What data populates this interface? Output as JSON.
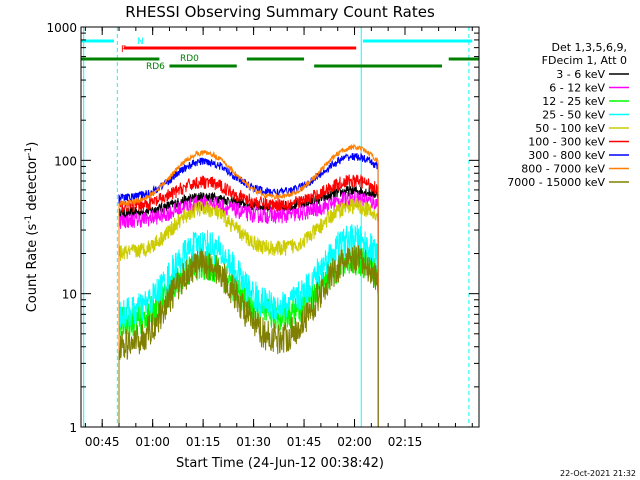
{
  "chart_data": {
    "type": "line",
    "title": "RHESSI Observing Summary Count Rates",
    "xlabel": "Start Time (24-Jun-12 00:38:42)",
    "ylabel_main": "Count Rate (s",
    "ylabel_sup1": "-1",
    "ylabel_mid": " detector",
    "ylabel_sup2": "-1",
    "ylabel_end": ")",
    "yscale": "log",
    "ylim": [
      1,
      1000
    ],
    "xlim_minutes": [
      38.7,
      157
    ],
    "x_ticks": [
      {
        "label": "00:45",
        "t": 45
      },
      {
        "label": "01:00",
        "t": 60
      },
      {
        "label": "01:15",
        "t": 75
      },
      {
        "label": "01:30",
        "t": 90
      },
      {
        "label": "01:45",
        "t": 105
      },
      {
        "label": "02:00",
        "t": 120
      },
      {
        "label": "02:15",
        "t": 135
      }
    ],
    "y_ticks": [
      {
        "label": "1",
        "v": 1
      },
      {
        "label": "10",
        "v": 10
      },
      {
        "label": "100",
        "v": 100
      },
      {
        "label": "1000",
        "v": 1000
      }
    ],
    "legend_header": [
      "Det 1,3,5,6,9,",
      "FDecim 1, Att 0"
    ],
    "series": [
      {
        "name": "3 - 6 keV",
        "color": "#000000",
        "base": 40,
        "bump": 1.25,
        "end": 48,
        "noise": 0.04
      },
      {
        "name": "6 - 12 keV",
        "color": "#ff00ff",
        "base": 35,
        "bump": 1.3,
        "end": 40,
        "noise": 0.06
      },
      {
        "name": "12 - 25 keV",
        "color": "#00ff00",
        "base": 6,
        "bump": 2.6,
        "end": 7,
        "noise": 0.12
      },
      {
        "name": "25 - 50 keV",
        "color": "#00ffff",
        "base": 7,
        "bump": 3.2,
        "end": 8,
        "noise": 0.12
      },
      {
        "name": "50 - 100 keV",
        "color": "#cccc00",
        "base": 20,
        "bump": 2.1,
        "end": 22,
        "noise": 0.06
      },
      {
        "name": "100 - 300 keV",
        "color": "#ff0000",
        "base": 45,
        "bump": 1.5,
        "end": 47,
        "noise": 0.05
      },
      {
        "name": "300 - 800 keV",
        "color": "#0000ff",
        "base": 52,
        "bump": 1.8,
        "end": 60,
        "noise": 0.03
      },
      {
        "name": "800 - 7000 keV",
        "color": "#ff8000",
        "base": 47,
        "bump": 2.3,
        "end": 55,
        "noise": 0.02
      },
      {
        "name": "7000 - 15000 keV",
        "color": "#808000",
        "base": 4,
        "bump": 4.0,
        "end": 4.5,
        "noise": 0.12
      }
    ],
    "data_windows": [
      [
        50,
        127
      ]
    ],
    "orbit_peaks": [
      75,
      119.5
    ],
    "annotations": {
      "N": "N",
      "F": "F",
      "RD0": "RD0",
      "RD6": "RD6"
    },
    "flag_bars": [
      {
        "label": "N",
        "color": "#00ffff",
        "segments": [
          [
            38.7,
            48.5
          ],
          [
            122.5,
            155
          ]
        ]
      },
      {
        "label": "F",
        "color": "#ff0000",
        "segments": [
          [
            51.5,
            120.5
          ]
        ]
      },
      {
        "label": "RD0",
        "color": "#008000",
        "segments": [
          [
            38.7,
            62
          ],
          [
            88,
            105
          ],
          [
            148,
            157
          ]
        ]
      },
      {
        "label": "RD6",
        "color": "#008000",
        "segments": [
          [
            65,
            85
          ],
          [
            108,
            146
          ]
        ]
      }
    ],
    "vertical_lines": [
      {
        "t": 39.5,
        "color": "#00ffff",
        "style": "solid"
      },
      {
        "t": 49.5,
        "color": "#00ffff",
        "style": "dashed"
      },
      {
        "t": 122,
        "color": "#00ffff",
        "style": "solid"
      },
      {
        "t": 154,
        "color": "#00ffff",
        "style": "dashed"
      }
    ],
    "legend_placement": "right",
    "grid": false
  },
  "timestamp": "22-Oct-2021 21:32"
}
